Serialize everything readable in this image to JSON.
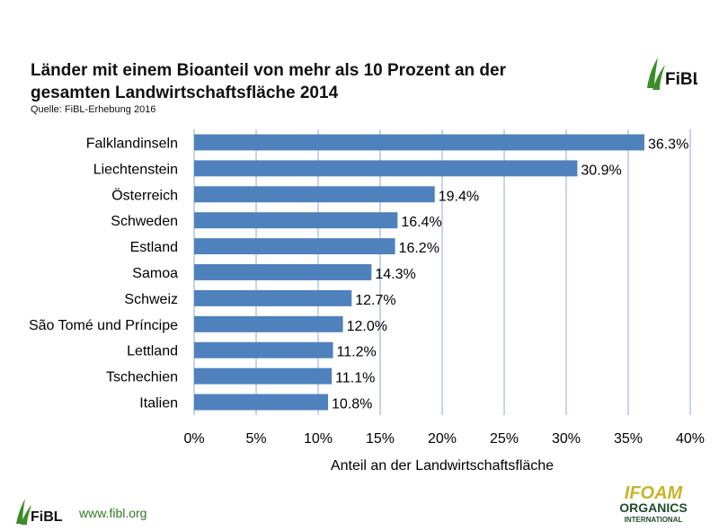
{
  "title_lines": [
    "Länder mit einem Bioanteil von mehr als 10 Prozent an der",
    "gesamten Landwirtschaftsfläche 2014"
  ],
  "source": "Quelle: FiBL-Erhebung 2016",
  "brand": {
    "fibl_logo_text": "FiBL",
    "website": "www.fibl.org",
    "ifoam_line1": "IFOAM",
    "ifoam_line2": "ORGANICS",
    "ifoam_line3": "INTERNATIONAL"
  },
  "colors": {
    "bar": "#4f81bd",
    "grid": "#8ea9d5",
    "fibl_green": "#3d8c2a",
    "ifoam_gold": "#c9b22b"
  },
  "chart_data": {
    "type": "bar",
    "orientation": "horizontal",
    "categories": [
      "Falklandinseln",
      "Liechtenstein",
      "Österreich",
      "Schweden",
      "Estland",
      "Samoa",
      "Schweiz",
      "São Tomé und Príncipe",
      "Lettland",
      "Tschechien",
      "Italien"
    ],
    "values": [
      36.3,
      30.9,
      19.4,
      16.4,
      16.2,
      14.3,
      12.7,
      12.0,
      11.2,
      11.1,
      10.8
    ],
    "value_labels": [
      "36.3%",
      "30.9%",
      "19.4%",
      "16.4%",
      "16.2%",
      "14.3%",
      "12.7%",
      "12.0%",
      "11.2%",
      "11.1%",
      "10.8%"
    ],
    "xlabel": "Anteil an der Landwirtschaftsfläche",
    "ylabel": "",
    "xlim": [
      0,
      40
    ],
    "xticks": [
      0,
      5,
      10,
      15,
      20,
      25,
      30,
      35,
      40
    ],
    "xtick_labels": [
      "0%",
      "5%",
      "10%",
      "15%",
      "20%",
      "25%",
      "30%",
      "35%",
      "40%"
    ],
    "grid": true
  }
}
